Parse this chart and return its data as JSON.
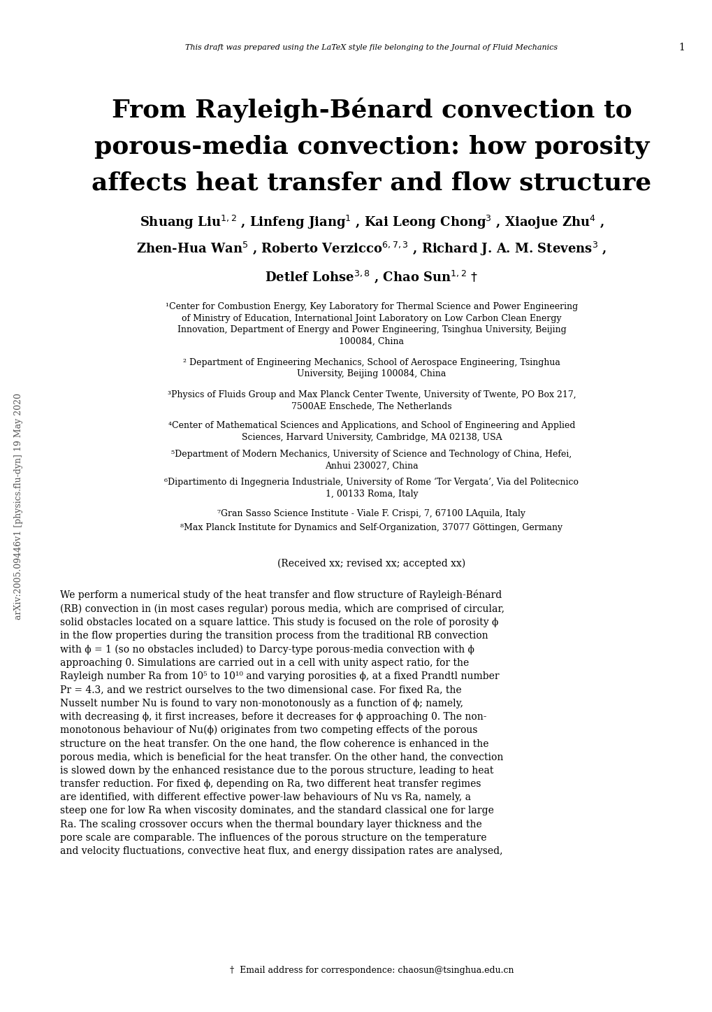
{
  "bg_color": "#ffffff",
  "header_italic": "This draft was prepared using the LaTeX style file belonging to the Journal of Fluid Mechanics",
  "header_page_num": "1",
  "title_lines": [
    "From Rayleigh-Bénard convection to",
    "porous-media convection: how porosity",
    "affects heat transfer and flow structure"
  ],
  "affiliations": [
    "¹Center for Combustion Energy, Key Laboratory for Thermal Science and Power Engineering\nof Ministry of Education, International Joint Laboratory on Low Carbon Clean Energy\nInnovation, Department of Energy and Power Engineering, Tsinghua University, Beijing\n100084, China",
    "² Department of Engineering Mechanics, School of Aerospace Engineering, Tsinghua\nUniversity, Beijing 100084, China",
    "³Physics of Fluids Group and Max Planck Center Twente, University of Twente, PO Box 217,\n7500AE Enschede, The Netherlands",
    "⁴Center of Mathematical Sciences and Applications, and School of Engineering and Applied\nSciences, Harvard University, Cambridge, MA 02138, USA",
    "⁵Department of Modern Mechanics, University of Science and Technology of China, Hefei,\nAnhui 230027, China",
    "⁶Dipartimento di Ingegneria Industriale, University of Rome ‘Tor Vergata’, Via del Politecnico\n1, 00133 Roma, Italy",
    "⁷Gran Sasso Science Institute - Viale F. Crispi, 7, 67100 LAquila, Italy",
    "⁸Max Planck Institute for Dynamics and Self-Organization, 37077 Göttingen, Germany"
  ],
  "received": "(Received xx; revised xx; accepted xx)",
  "abstract_lines": [
    "We perform a numerical study of the heat transfer and flow structure of Rayleigh-Bénard",
    "(RB) convection in (in most cases regular) porous media, which are comprised of circular,",
    "solid obstacles located on a square lattice. This study is focused on the role of porosity ϕ",
    "in the flow properties during the transition process from the traditional RB convection",
    "with ϕ = 1 (so no obstacles included) to Darcy-type porous-media convection with ϕ",
    "approaching 0. Simulations are carried out in a cell with unity aspect ratio, for the",
    "Rayleigh number Ra from 10⁵ to 10¹⁰ and varying porosities ϕ, at a fixed Prandtl number",
    "Pr = 4.3, and we restrict ourselves to the two dimensional case. For fixed Ra, the",
    "Nusselt number Nu is found to vary non-monotonously as a function of ϕ; namely,",
    "with decreasing ϕ, it first increases, before it decreases for ϕ approaching 0. The non-",
    "monotonous behaviour of Nu(ϕ) originates from two competing effects of the porous",
    "structure on the heat transfer. On the one hand, the flow coherence is enhanced in the",
    "porous media, which is beneficial for the heat transfer. On the other hand, the convection",
    "is slowed down by the enhanced resistance due to the porous structure, leading to heat",
    "transfer reduction. For fixed ϕ, depending on Ra, two different heat transfer regimes",
    "are identified, with different effective power-law behaviours of Nu vs Ra, namely, a",
    "steep one for low Ra when viscosity dominates, and the standard classical one for large",
    "Ra. The scaling crossover occurs when the thermal boundary layer thickness and the",
    "pore scale are comparable. The influences of the porous structure on the temperature",
    "and velocity fluctuations, convective heat flux, and energy dissipation rates are analysed,"
  ],
  "footnote": "†  Email address for correspondence: chaosun@tsinghua.edu.cn",
  "sidebar_text": "arXiv:2005.09446v1 [physics.flu-dyn] 19 May 2020",
  "figsize": [
    10.2,
    14.47
  ],
  "dpi": 100,
  "title_fontsize": 26,
  "author_fontsize": 13,
  "aff_fontsize": 9,
  "abstract_fontsize": 10,
  "header_fontsize": 8,
  "received_fontsize": 10,
  "footnote_fontsize": 9
}
